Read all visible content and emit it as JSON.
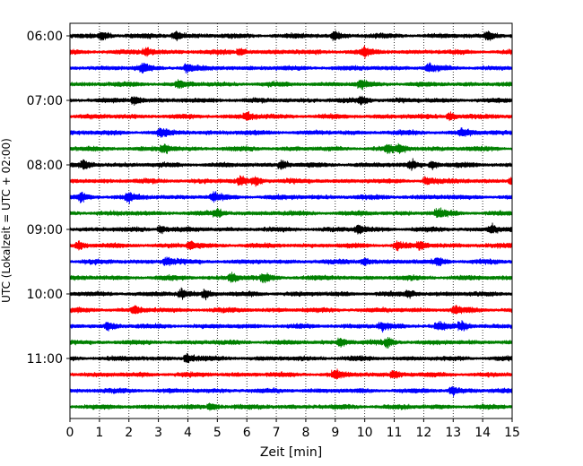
{
  "chart_data": {
    "type": "line",
    "title": "",
    "xlabel": "Zeit  [min]",
    "ylabel": "UTC (Lokalzeit = UTC + 02:00)",
    "xlim": [
      0,
      15
    ],
    "x_ticks": [
      "0",
      "1",
      "2",
      "3",
      "4",
      "5",
      "6",
      "7",
      "8",
      "9",
      "10",
      "11",
      "12",
      "13",
      "14",
      "15"
    ],
    "y_ticks": [
      "06:00",
      "07:00",
      "08:00",
      "09:00",
      "10:00",
      "11:00"
    ],
    "grid": "vertical-dotted",
    "trace_interval_min": 15,
    "first_trace": "06:00",
    "color_cycle": [
      "#000000",
      "#ff0000",
      "#0000ff",
      "#008000"
    ],
    "traces": [
      {
        "start": "06:00",
        "color": "#000000",
        "events_min": [
          1.1,
          3.6,
          9.0,
          14.2
        ]
      },
      {
        "start": "06:15",
        "color": "#ff0000",
        "events_min": [
          2.6,
          5.8,
          10.0
        ]
      },
      {
        "start": "06:30",
        "color": "#0000ff",
        "events_min": [
          2.5,
          4.0,
          12.2
        ]
      },
      {
        "start": "06:45",
        "color": "#008000",
        "events_min": [
          3.7,
          9.9
        ]
      },
      {
        "start": "07:00",
        "color": "#000000",
        "events_min": [
          2.2,
          9.9
        ]
      },
      {
        "start": "07:15",
        "color": "#ff0000",
        "events_min": [
          6.0,
          12.9
        ]
      },
      {
        "start": "07:30",
        "color": "#0000ff",
        "events_min": [
          3.1,
          13.3
        ]
      },
      {
        "start": "07:45",
        "color": "#008000",
        "events_min": [
          3.2,
          10.8,
          11.2
        ]
      },
      {
        "start": "08:00",
        "color": "#000000",
        "events_min": [
          0.5,
          7.2,
          11.6,
          12.3
        ]
      },
      {
        "start": "08:15",
        "color": "#ff0000",
        "events_min": [
          5.8,
          6.3,
          12.1,
          15.0
        ]
      },
      {
        "start": "08:30",
        "color": "#0000ff",
        "events_min": [
          0.4,
          2.0,
          4.9
        ]
      },
      {
        "start": "08:45",
        "color": "#008000",
        "events_min": [
          5.0,
          12.5
        ]
      },
      {
        "start": "09:00",
        "color": "#000000",
        "events_min": [
          3.1,
          9.8,
          14.3
        ]
      },
      {
        "start": "09:15",
        "color": "#ff0000",
        "events_min": [
          0.3,
          4.1,
          11.1,
          11.9
        ]
      },
      {
        "start": "09:30",
        "color": "#0000ff",
        "events_min": [
          3.3,
          10.0,
          12.5
        ]
      },
      {
        "start": "09:45",
        "color": "#008000",
        "events_min": [
          5.5,
          6.6
        ]
      },
      {
        "start": "10:00",
        "color": "#000000",
        "events_min": [
          3.8,
          4.6,
          11.5
        ]
      },
      {
        "start": "10:15",
        "color": "#ff0000",
        "events_min": [
          2.2,
          13.1
        ]
      },
      {
        "start": "10:30",
        "color": "#0000ff",
        "events_min": [
          1.3,
          10.6,
          12.5,
          13.3
        ]
      },
      {
        "start": "10:45",
        "color": "#008000",
        "events_min": [
          9.2,
          10.8
        ]
      },
      {
        "start": "11:00",
        "color": "#000000",
        "events_min": [
          4.0
        ]
      },
      {
        "start": "11:15",
        "color": "#ff0000",
        "events_min": [
          9.0,
          11.0
        ]
      },
      {
        "start": "11:30",
        "color": "#0000ff",
        "events_min": [
          13.0
        ]
      },
      {
        "start": "11:45",
        "color": "#008000",
        "events_min": [
          4.8
        ]
      }
    ]
  }
}
